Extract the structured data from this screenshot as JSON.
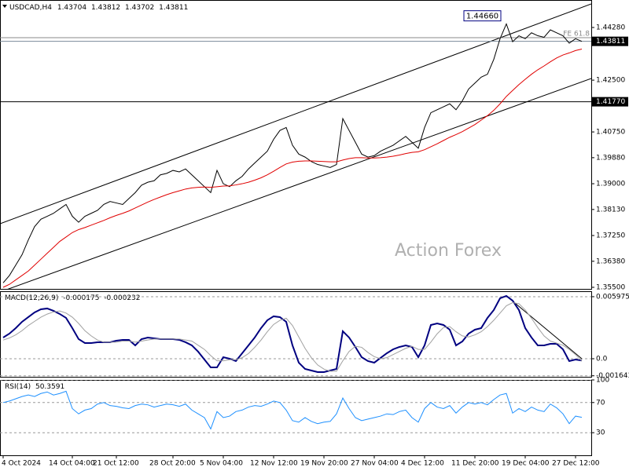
{
  "chart_data": [
    {
      "type": "line",
      "symbol": "USDCAD,H4",
      "ohlc": [
        1.43704,
        1.43812,
        1.43702,
        1.43811
      ],
      "categories": [
        "4 Oct 2024",
        null,
        null,
        null,
        null,
        null,
        null,
        null,
        null,
        null,
        null,
        "14 Oct 04:00",
        null,
        null,
        null,
        null,
        null,
        null,
        "21 Oct 12:00",
        null,
        null,
        null,
        null,
        null,
        null,
        null,
        null,
        "28 Oct 20:00",
        null,
        null,
        null,
        null,
        null,
        null,
        null,
        "5 Nov 04:00",
        null,
        null,
        null,
        null,
        null,
        null,
        null,
        "12 Nov 12:00",
        null,
        null,
        null,
        null,
        null,
        null,
        null,
        "19 Nov 20:00",
        null,
        null,
        null,
        null,
        null,
        null,
        null,
        "27 Nov 04:00",
        null,
        null,
        null,
        null,
        null,
        null,
        null,
        "4 Dec 12:00",
        null,
        null,
        null,
        null,
        null,
        null,
        null,
        "11 Dec 20:00",
        null,
        null,
        null,
        null,
        null,
        null,
        null,
        "19 Dec 04:00",
        null,
        null,
        null,
        null,
        null,
        null,
        null,
        "27 Dec 12:00",
        null
      ],
      "series": [
        {
          "color": "#000000",
          "values": [
            1.3565,
            1.359,
            1.3625,
            1.366,
            1.371,
            1.3755,
            1.378,
            1.379,
            1.38,
            1.3815,
            1.383,
            1.379,
            1.377,
            1.379,
            1.38,
            1.381,
            1.383,
            1.384,
            1.3835,
            1.383,
            1.385,
            1.387,
            1.3895,
            1.3905,
            1.391,
            1.393,
            1.3935,
            1.3945,
            1.394,
            1.395,
            1.393,
            1.391,
            1.389,
            1.387,
            1.3945,
            1.39,
            1.389,
            1.391,
            1.3925,
            1.395,
            1.397,
            1.399,
            1.401,
            1.405,
            1.408,
            1.409,
            1.403,
            1.4,
            1.399,
            1.3975,
            1.3965,
            1.396,
            1.3955,
            1.3965,
            1.412,
            1.408,
            1.404,
            1.4,
            1.399,
            1.3995,
            1.401,
            1.402,
            1.403,
            1.4045,
            1.406,
            1.404,
            1.402,
            1.409,
            1.414,
            1.415,
            1.416,
            1.417,
            1.415,
            1.418,
            1.422,
            1.424,
            1.426,
            1.427,
            1.432,
            1.439,
            1.444,
            1.438,
            1.44,
            1.439,
            1.441,
            1.44,
            1.4395,
            1.442,
            1.441,
            1.44,
            1.4375,
            1.439,
            1.4381
          ]
        },
        {
          "color": "#e00000",
          "values": [
            1.355,
            1.356,
            1.3575,
            1.359,
            1.3605,
            1.3625,
            1.3645,
            1.3665,
            1.3685,
            1.3705,
            1.372,
            1.3735,
            1.3745,
            1.3752,
            1.376,
            1.3768,
            1.3776,
            1.3785,
            1.3793,
            1.38,
            1.3808,
            1.3818,
            1.3828,
            1.3838,
            1.3847,
            1.3855,
            1.3863,
            1.387,
            1.3876,
            1.3882,
            1.3886,
            1.3888,
            1.3889,
            1.3888,
            1.389,
            1.3892,
            1.3893,
            1.3896,
            1.39,
            1.3905,
            1.3912,
            1.392,
            1.393,
            1.3942,
            1.3955,
            1.3967,
            1.3973,
            1.3976,
            1.3977,
            1.3977,
            1.3976,
            1.3975,
            1.3974,
            1.3974,
            1.398,
            1.3985,
            1.3988,
            1.3988,
            1.3987,
            1.3987,
            1.3988,
            1.399,
            1.3993,
            1.3997,
            1.4002,
            1.4006,
            1.4008,
            1.4015,
            1.4025,
            1.4035,
            1.4046,
            1.4057,
            1.4066,
            1.4076,
            1.4088,
            1.41,
            1.4115,
            1.413,
            1.4148,
            1.417,
            1.4195,
            1.4215,
            1.4235,
            1.4253,
            1.427,
            1.4285,
            1.4298,
            1.4312,
            1.4325,
            1.4335,
            1.4342,
            1.435,
            1.4355
          ]
        }
      ],
      "ylim": [
        1.35447,
        1.45208
      ],
      "yticks": [
        {
          "value": 1.355,
          "label": "1.35500"
        },
        {
          "value": 1.3638,
          "label": "1.36380"
        },
        {
          "value": 1.3725,
          "label": "1.37250"
        },
        {
          "value": 1.3813,
          "label": "1.38130"
        },
        {
          "value": 1.39,
          "label": "1.39000"
        },
        {
          "value": 1.3988,
          "label": "1.39880"
        },
        {
          "value": 1.4075,
          "label": "1.40750"
        },
        {
          "value": 1.425,
          "label": "1.42500"
        },
        {
          "value": 1.4428,
          "label": "1.44280"
        }
      ],
      "channel": {
        "upper": [
          1.37649,
          1.45076
        ],
        "lower": [
          1.35341,
          1.42556
        ]
      },
      "levels": [
        {
          "value": 1.4177,
          "label": "1.41770"
        },
        {
          "value": 1.43811,
          "label": "1.43811"
        }
      ],
      "fe_level": {
        "value": 1.43935,
        "label": "FE 61.8"
      },
      "peak": {
        "index": 80,
        "value": 1.4466,
        "label": "1.44660"
      },
      "watermark": "Action Forex"
    },
    {
      "type": "line",
      "title": "MACD(12,26,9)",
      "readout": [
        -0.000175,
        -0.000232
      ],
      "series": [
        {
          "color": "#000080",
          "values": [
            0.002042,
            0.00242,
            0.00295,
            0.003555,
            0.004008,
            0.004462,
            0.004765,
            0.004841,
            0.004614,
            0.004311,
            0.003933,
            0.00295,
            0.001891,
            0.001513,
            0.001513,
            0.001588,
            0.001588,
            0.001588,
            0.00174,
            0.001815,
            0.001815,
            0.001286,
            0.001891,
            0.002042,
            0.001966,
            0.001891,
            0.001891,
            0.001891,
            0.001815,
            0.001588,
            0.001286,
            0.000681,
            -7.6e-05,
            -0.000832,
            -0.000832,
            0.000151,
            0,
            -0.000227,
            0.000529,
            0.001286,
            0.002042,
            0.00295,
            0.003706,
            0.004084,
            0.004008,
            0.003555,
            0.001286,
            -0.000378,
            -0.000983,
            -0.001134,
            -0.001286,
            -0.001286,
            -0.001134,
            -0.000983,
            0.002647,
            0.002042,
            0.001134,
            0.000151,
            -0.000227,
            -0.000378,
            7.6e-05,
            0.000529,
            0.000907,
            0.001134,
            0.001286,
            0.001134,
            0.000151,
            0.001286,
            0.003252,
            0.003403,
            0.003252,
            0.002798,
            0.001286,
            0.001664,
            0.00242,
            0.002798,
            0.00295,
            0.003933,
            0.004689,
            0.005823,
            0.00605,
            0.005597,
            0.004689,
            0.00295,
            0.002042,
            0.001286,
            0.001286,
            0.001437,
            0.001437,
            0.000907,
            -0.000227,
            -7.6e-05,
            -0.000175
          ]
        },
        {
          "color": "#a0a0a0",
          "values": [
            0.0018,
            0.002,
            0.0023,
            0.0027,
            0.0032,
            0.0036,
            0.004,
            0.0043,
            0.0045,
            0.0046,
            0.0044,
            0.004,
            0.0034,
            0.0027,
            0.0022,
            0.0018,
            0.0016,
            0.0016,
            0.0016,
            0.0017,
            0.0017,
            0.0016,
            0.0017,
            0.0018,
            0.0019,
            0.0019,
            0.0019,
            0.0019,
            0.0019,
            0.0018,
            0.0017,
            0.0013,
            0.0009,
            0.0003,
            -0.0002,
            -0.0002,
            -0.0001,
            -0.0001,
            0.0001,
            0.0005,
            0.0011,
            0.0018,
            0.0026,
            0.0033,
            0.0037,
            0.0039,
            0.0032,
            0.0021,
            0.001,
            0.0001,
            -0.0006,
            -0.001,
            -0.0012,
            -0.0012,
            -0.0002,
            0.0007,
            0.0012,
            0.0011,
            0.0006,
            0.0002,
            0,
            0.0001,
            0.0004,
            0.0007,
            0.001,
            0.0012,
            0.0009,
            0.0009,
            0.0016,
            0.0024,
            0.003,
            0.0031,
            0.0026,
            0.0022,
            0.0021,
            0.0023,
            0.0026,
            0.0031,
            0.0037,
            0.0044,
            0.0051,
            0.0054,
            0.0053,
            0.0047,
            0.0039,
            0.003,
            0.0022,
            0.0017,
            0.0015,
            0.0013,
            0.0009,
            0.0004,
            -0.000232
          ]
        }
      ],
      "ylim": [
        -0.00174,
        0.0065
      ],
      "yticks": [
        0.005975,
        {
          "value": 0,
          "label": "0.0"
        },
        -0.001643
      ],
      "trendline": {
        "x": [
          80,
          92
        ],
        "y": [
          0.00605,
          0
        ]
      },
      "grid": true
    },
    {
      "type": "line",
      "title": "RSI(14)",
      "readout": 50.3591,
      "series": [
        {
          "color": "#1e90ff",
          "values": [
            70,
            72,
            75,
            78,
            80,
            78,
            82,
            84,
            80,
            82,
            85,
            62,
            55,
            60,
            62,
            68,
            70,
            66,
            65,
            63,
            62,
            66,
            68,
            67,
            64,
            66,
            68,
            67,
            65,
            68,
            60,
            55,
            50,
            35,
            58,
            50,
            52,
            58,
            60,
            64,
            66,
            65,
            68,
            72,
            70,
            60,
            46,
            44,
            50,
            45,
            42,
            44,
            45,
            55,
            76,
            62,
            50,
            46,
            48,
            50,
            52,
            55,
            54,
            58,
            60,
            50,
            44,
            62,
            70,
            64,
            62,
            66,
            56,
            64,
            70,
            68,
            70,
            67,
            74,
            80,
            82,
            56,
            62,
            58,
            64,
            60,
            58,
            68,
            63,
            55,
            42,
            52,
            50.3591
          ]
        }
      ],
      "ylim": [
        0,
        100
      ],
      "yticks": [
        30,
        70,
        100
      ],
      "grid": true
    }
  ]
}
